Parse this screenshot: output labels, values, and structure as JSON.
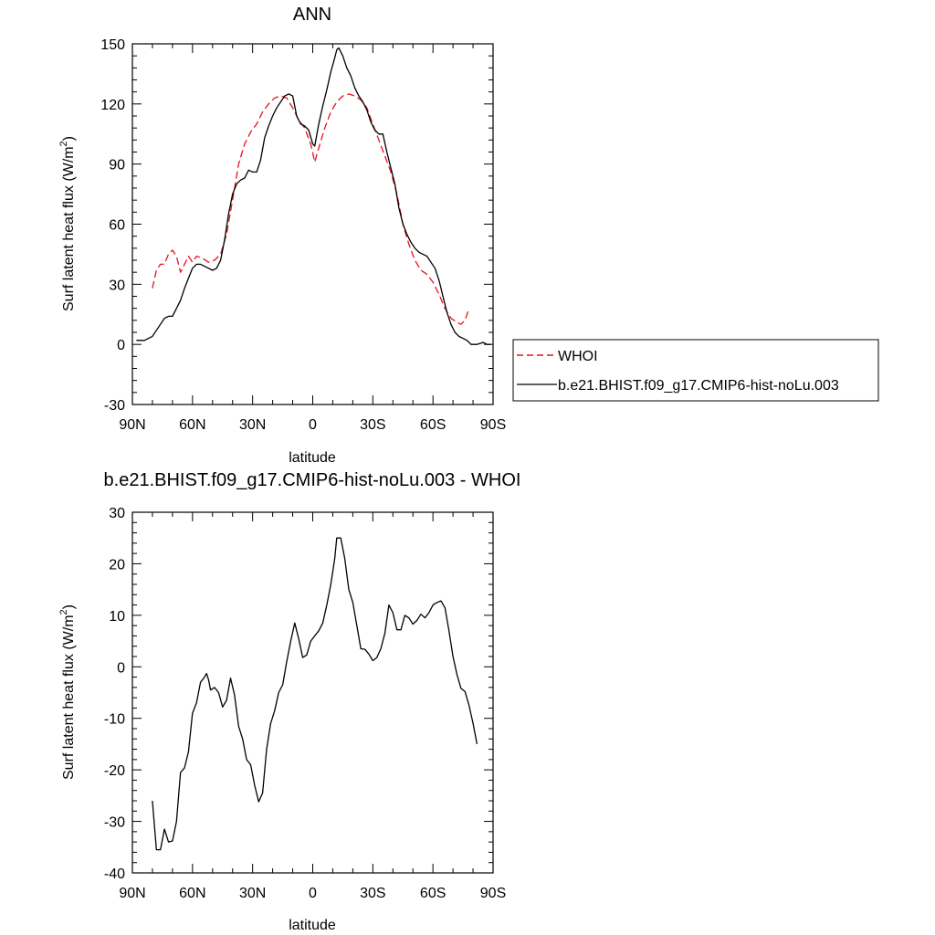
{
  "chart_data": [
    {
      "type": "line",
      "title": "ANN",
      "xlabel": "latitude",
      "ylabel": "Surf latent heat flux (W/m²)",
      "ylabel_main": "Surf latent heat flux (W/m",
      "ylabel_sup": "2",
      "ylabel_end": ")",
      "xlim": [
        90,
        -90
      ],
      "ylim": [
        -30,
        150
      ],
      "x_ticks": [
        90,
        60,
        30,
        0,
        -30,
        -60,
        -90
      ],
      "x_tick_labels": [
        "90N",
        "60N",
        "30N",
        "0",
        "30S",
        "60S",
        "90S"
      ],
      "y_ticks": [
        -30,
        0,
        30,
        60,
        90,
        120,
        150
      ],
      "y_tick_labels": [
        "-30",
        "0",
        "30",
        "60",
        "90",
        "120",
        "150"
      ],
      "legend_position": "right",
      "series": [
        {
          "name": "WHOI",
          "color": "#e8101a",
          "dash": "dashed",
          "points": [
            [
              80,
              28
            ],
            [
              78,
              37
            ],
            [
              76,
              40
            ],
            [
              74,
              40
            ],
            [
              72,
              45
            ],
            [
              70,
              47
            ],
            [
              68,
              44
            ],
            [
              66,
              36
            ],
            [
              64,
              40
            ],
            [
              62,
              44
            ],
            [
              60,
              41
            ],
            [
              58,
              44
            ],
            [
              55,
              43
            ],
            [
              52,
              41
            ],
            [
              49,
              42
            ],
            [
              46,
              45
            ],
            [
              43,
              55
            ],
            [
              40,
              72
            ],
            [
              37,
              90
            ],
            [
              34,
              100
            ],
            [
              31,
              106
            ],
            [
              28,
              110
            ],
            [
              25,
              116
            ],
            [
              22,
              120
            ],
            [
              19,
              123
            ],
            [
              16,
              124
            ],
            [
              13,
              123
            ],
            [
              10,
              118
            ],
            [
              7,
              112
            ],
            [
              4,
              108
            ],
            [
              1,
              100
            ],
            [
              -1,
              91
            ],
            [
              -3,
              98
            ],
            [
              -6,
              108
            ],
            [
              -9,
              116
            ],
            [
              -12,
              121
            ],
            [
              -15,
              124
            ],
            [
              -18,
              125
            ],
            [
              -21,
              124
            ],
            [
              -24,
              122
            ],
            [
              -27,
              118
            ],
            [
              -30,
              110
            ],
            [
              -33,
              102
            ],
            [
              -36,
              94
            ],
            [
              -39,
              86
            ],
            [
              -42,
              75
            ],
            [
              -45,
              60
            ],
            [
              -48,
              50
            ],
            [
              -51,
              42
            ],
            [
              -54,
              37
            ],
            [
              -57,
              35
            ],
            [
              -60,
              31
            ],
            [
              -63,
              25
            ],
            [
              -66,
              18
            ],
            [
              -69,
              13
            ],
            [
              -72,
              11
            ],
            [
              -74,
              10
            ],
            [
              -76,
              12
            ],
            [
              -78,
              18
            ]
          ]
        },
        {
          "name": "b.e21.BHIST.f09_g17.CMIP6-hist-noLu.003",
          "color": "#000000",
          "dash": "solid",
          "points": [
            [
              88,
              2
            ],
            [
              84,
              2
            ],
            [
              82,
              3
            ],
            [
              80,
              4
            ],
            [
              78,
              7
            ],
            [
              76,
              10
            ],
            [
              74,
              13
            ],
            [
              72,
              14
            ],
            [
              70,
              14
            ],
            [
              68,
              18
            ],
            [
              66,
              22
            ],
            [
              64,
              28
            ],
            [
              62,
              33
            ],
            [
              60,
              38
            ],
            [
              58,
              40
            ],
            [
              56,
              40
            ],
            [
              54,
              39
            ],
            [
              52,
              38
            ],
            [
              50,
              37
            ],
            [
              48,
              38
            ],
            [
              46,
              42
            ],
            [
              44,
              52
            ],
            [
              42,
              65
            ],
            [
              40,
              75
            ],
            [
              38,
              80
            ],
            [
              36,
              82
            ],
            [
              34,
              83
            ],
            [
              32,
              87
            ],
            [
              30,
              86
            ],
            [
              28,
              86
            ],
            [
              26,
              92
            ],
            [
              24,
              103
            ],
            [
              22,
              109
            ],
            [
              20,
              114
            ],
            [
              18,
              118
            ],
            [
              16,
              121
            ],
            [
              14,
              124
            ],
            [
              12,
              125
            ],
            [
              10,
              124
            ],
            [
              8,
              114
            ],
            [
              6,
              110
            ],
            [
              4,
              109
            ],
            [
              2,
              107
            ],
            [
              0,
              100
            ],
            [
              -1,
              99
            ],
            [
              -3,
              110
            ],
            [
              -5,
              119
            ],
            [
              -7,
              127
            ],
            [
              -9,
              136
            ],
            [
              -11,
              143
            ],
            [
              -12,
              147
            ],
            [
              -13,
              148
            ],
            [
              -15,
              144
            ],
            [
              -17,
              138
            ],
            [
              -19,
              134
            ],
            [
              -21,
              128
            ],
            [
              -23,
              124
            ],
            [
              -25,
              121
            ],
            [
              -27,
              117
            ],
            [
              -29,
              111
            ],
            [
              -31,
              107
            ],
            [
              -33,
              105
            ],
            [
              -35,
              105
            ],
            [
              -37,
              96
            ],
            [
              -39,
              88
            ],
            [
              -41,
              80
            ],
            [
              -43,
              68
            ],
            [
              -45,
              60
            ],
            [
              -47,
              55
            ],
            [
              -49,
              51
            ],
            [
              -51,
              48
            ],
            [
              -53,
              46
            ],
            [
              -55,
              45
            ],
            [
              -57,
              44
            ],
            [
              -59,
              41
            ],
            [
              -61,
              38
            ],
            [
              -63,
              32
            ],
            [
              -65,
              24
            ],
            [
              -67,
              16
            ],
            [
              -69,
              10
            ],
            [
              -71,
              6
            ],
            [
              -73,
              4
            ],
            [
              -75,
              3
            ],
            [
              -77,
              2
            ],
            [
              -79,
              0
            ],
            [
              -82,
              0
            ],
            [
              -85,
              1
            ],
            [
              -87,
              0
            ],
            [
              -89,
              0
            ]
          ]
        }
      ]
    },
    {
      "type": "line",
      "title": "b.e21.BHIST.f09_g17.CMIP6-hist-noLu.003 - WHOI",
      "xlabel": "latitude",
      "ylabel": "Surf latent heat flux (W/m²)",
      "ylabel_main": "Surf latent heat flux (W/m",
      "ylabel_sup": "2",
      "ylabel_end": ")",
      "xlim": [
        90,
        -90
      ],
      "ylim": [
        -40,
        30
      ],
      "x_ticks": [
        90,
        60,
        30,
        0,
        -30,
        -60,
        -90
      ],
      "x_tick_labels": [
        "90N",
        "60N",
        "30N",
        "0",
        "30S",
        "60S",
        "90S"
      ],
      "y_ticks": [
        -40,
        -30,
        -20,
        -10,
        0,
        10,
        20,
        30
      ],
      "y_tick_labels": [
        "-40",
        "-30",
        "-20",
        "-10",
        "0",
        "10",
        "20",
        "30"
      ],
      "series": [
        {
          "color": "#000000",
          "dash": "solid",
          "points": [
            [
              80,
              -26
            ],
            [
              78,
              -35.5
            ],
            [
              76,
              -35.5
            ],
            [
              74,
              -31.5
            ],
            [
              72,
              -34
            ],
            [
              70,
              -33.8
            ],
            [
              68,
              -30
            ],
            [
              66,
              -20.5
            ],
            [
              64,
              -19.6
            ],
            [
              62,
              -16.5
            ],
            [
              60,
              -9
            ],
            [
              58,
              -7
            ],
            [
              56,
              -3
            ],
            [
              54,
              -2
            ],
            [
              53,
              -1.3
            ],
            [
              52,
              -2.5
            ],
            [
              51,
              -4.5
            ],
            [
              49,
              -4
            ],
            [
              47,
              -5
            ],
            [
              45,
              -7.8
            ],
            [
              43,
              -6.5
            ],
            [
              41,
              -2.2
            ],
            [
              39,
              -5.5
            ],
            [
              37,
              -11.5
            ],
            [
              35,
              -14
            ],
            [
              33,
              -18
            ],
            [
              31,
              -19
            ],
            [
              29,
              -23
            ],
            [
              27,
              -26.2
            ],
            [
              25,
              -24.5
            ],
            [
              23,
              -16
            ],
            [
              21,
              -11
            ],
            [
              19,
              -8.5
            ],
            [
              17,
              -5
            ],
            [
              15,
              -3.5
            ],
            [
              13,
              1
            ],
            [
              11,
              5
            ],
            [
              9,
              8.5
            ],
            [
              7,
              5.5
            ],
            [
              5,
              1.8
            ],
            [
              3,
              2.3
            ],
            [
              1,
              5
            ],
            [
              -1,
              6
            ],
            [
              -3,
              7
            ],
            [
              -5,
              8.5
            ],
            [
              -7,
              12
            ],
            [
              -9,
              16
            ],
            [
              -11,
              21
            ],
            [
              -12,
              25
            ],
            [
              -14,
              25
            ],
            [
              -16,
              21
            ],
            [
              -18,
              15
            ],
            [
              -20,
              12.5
            ],
            [
              -22,
              8
            ],
            [
              -24,
              3.5
            ],
            [
              -26,
              3.4
            ],
            [
              -28,
              2.5
            ],
            [
              -30,
              1.2
            ],
            [
              -32,
              1.8
            ],
            [
              -34,
              3.5
            ],
            [
              -36,
              6.5
            ],
            [
              -38,
              12
            ],
            [
              -40,
              10.5
            ],
            [
              -42,
              7.2
            ],
            [
              -44,
              7.2
            ],
            [
              -46,
              10
            ],
            [
              -48,
              9.5
            ],
            [
              -50,
              8.3
            ],
            [
              -52,
              9
            ],
            [
              -54,
              10.2
            ],
            [
              -56,
              9.5
            ],
            [
              -58,
              10.5
            ],
            [
              -60,
              12
            ],
            [
              -62,
              12.5
            ],
            [
              -64,
              12.8
            ],
            [
              -66,
              11.5
            ],
            [
              -68,
              7
            ],
            [
              -70,
              2
            ],
            [
              -72,
              -1.5
            ],
            [
              -74,
              -4.2
            ],
            [
              -76,
              -4.8
            ],
            [
              -78,
              -7.5
            ],
            [
              -80,
              -11
            ],
            [
              -82,
              -15
            ]
          ]
        }
      ]
    }
  ]
}
